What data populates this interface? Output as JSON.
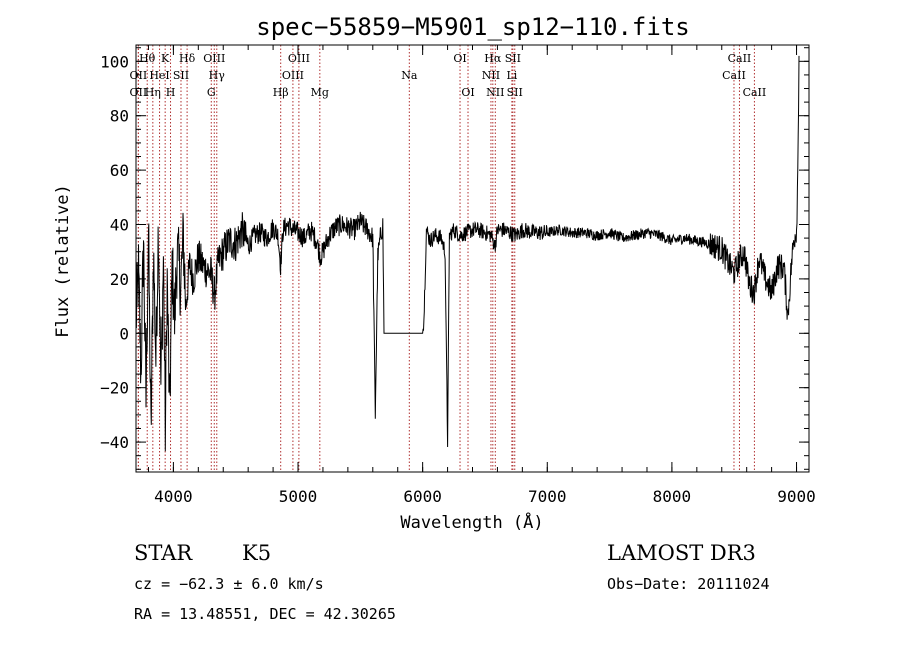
{
  "chart_data": {
    "type": "line",
    "title": "spec−55859−M5901_sp12−110.fits",
    "xlabel": "Wavelength (Å)",
    "ylabel": "Flux (relative)",
    "xlim": [
      3700,
      9100
    ],
    "ylim": [
      -51,
      106
    ],
    "grid": false,
    "x_ticks": [
      {
        "value": 4000,
        "label": "4000"
      },
      {
        "value": 5000,
        "label": "5000"
      },
      {
        "value": 6000,
        "label": "6000"
      },
      {
        "value": 7000,
        "label": "7000"
      },
      {
        "value": 8000,
        "label": "8000"
      },
      {
        "value": 9000,
        "label": "9000"
      }
    ],
    "y_ticks": [
      {
        "value": -40,
        "label": "−40"
      },
      {
        "value": -20,
        "label": "−20"
      },
      {
        "value": 0,
        "label": "0"
      },
      {
        "value": 20,
        "label": "20"
      },
      {
        "value": 40,
        "label": "40"
      },
      {
        "value": 60,
        "label": "60"
      },
      {
        "value": 80,
        "label": "80"
      },
      {
        "value": 100,
        "label": "100"
      }
    ],
    "x_minor_step": 200,
    "y_minor_step": 5,
    "line_marker_color": "#b03030",
    "spectral_lines": [
      {
        "label": "OII",
        "wavelength": 3727,
        "row": 2,
        "offset": -1
      },
      {
        "label": "Hθ",
        "wavelength": 3798,
        "row": 1,
        "offset": -1
      },
      {
        "label": "OII",
        "wavelength": 3727,
        "row": 3,
        "offset": -1
      },
      {
        "label": "Hη",
        "wavelength": 3835,
        "row": 3,
        "offset": 0
      },
      {
        "label": "HeI",
        "wavelength": 3889,
        "row": 2,
        "offset": 0
      },
      {
        "label": "K",
        "wavelength": 3934,
        "row": 1,
        "offset": 0
      },
      {
        "label": "H",
        "wavelength": 3969,
        "row": 3,
        "offset": 1
      },
      {
        "label": "SII",
        "wavelength": 4069,
        "row": 2,
        "offset": -1
      },
      {
        "label": "Hδ",
        "wavelength": 4102,
        "row": 1,
        "offset": 1
      },
      {
        "label": "OIII",
        "wavelength": 4320,
        "row": 1,
        "offset": 1
      },
      {
        "label": "Hγ",
        "wavelength": 4340,
        "row": 2,
        "offset": 1
      },
      {
        "label": "G",
        "wavelength": 4304,
        "row": 3,
        "offset": 0
      },
      {
        "label": "Hβ",
        "wavelength": 4861,
        "row": 3,
        "offset": 0
      },
      {
        "label": "OIII",
        "wavelength": 4959,
        "row": 2,
        "offset": 0
      },
      {
        "label": "OIII",
        "wavelength": 5007,
        "row": 1,
        "offset": 0
      },
      {
        "label": "Mg",
        "wavelength": 5175,
        "row": 3,
        "offset": 0
      },
      {
        "label": "Na",
        "wavelength": 5893,
        "row": 2,
        "offset": 0
      },
      {
        "label": "OI",
        "wavelength": 6300,
        "row": 1,
        "offset": 0
      },
      {
        "label": "OI",
        "wavelength": 6364,
        "row": 3,
        "offset": 0
      },
      {
        "label": "NII",
        "wavelength": 6548,
        "row": 2,
        "offset": 0
      },
      {
        "label": "Hα",
        "wavelength": 6563,
        "row": 1,
        "offset": 0
      },
      {
        "label": "NII",
        "wavelength": 6583,
        "row": 3,
        "offset": 0
      },
      {
        "label": "SII",
        "wavelength": 6716,
        "row": 1,
        "offset": 1
      },
      {
        "label": "Li",
        "wavelength": 6708,
        "row": 2,
        "offset": 1
      },
      {
        "label": "SII",
        "wavelength": 6731,
        "row": 3,
        "offset": 1
      },
      {
        "label": "CaII",
        "wavelength": 8498,
        "row": 2,
        "offset": 0
      },
      {
        "label": "CaII",
        "wavelength": 8542,
        "row": 1,
        "offset": 0
      },
      {
        "label": "CaII",
        "wavelength": 8662,
        "row": 3,
        "offset": 0
      }
    ],
    "series": [
      {
        "name": "flux",
        "anchors": [
          [
            3700,
            5
          ],
          [
            3720,
            22
          ],
          [
            3740,
            -15
          ],
          [
            3760,
            35
          ],
          [
            3780,
            -25
          ],
          [
            3800,
            38
          ],
          [
            3820,
            -38
          ],
          [
            3840,
            30
          ],
          [
            3860,
            -10
          ],
          [
            3880,
            42
          ],
          [
            3900,
            -20
          ],
          [
            3920,
            28
          ],
          [
            3935,
            -35
          ],
          [
            3950,
            20
          ],
          [
            3970,
            -30
          ],
          [
            3990,
            25
          ],
          [
            4010,
            5
          ],
          [
            4030,
            30
          ],
          [
            4060,
            18
          ],
          [
            4080,
            35
          ],
          [
            4100,
            10
          ],
          [
            4130,
            25
          ],
          [
            4160,
            20
          ],
          [
            4200,
            28
          ],
          [
            4250,
            24
          ],
          [
            4300,
            22
          ],
          [
            4330,
            14
          ],
          [
            4360,
            26
          ],
          [
            4400,
            30
          ],
          [
            4450,
            34
          ],
          [
            4500,
            33
          ],
          [
            4550,
            38
          ],
          [
            4600,
            32
          ],
          [
            4650,
            36
          ],
          [
            4700,
            37
          ],
          [
            4750,
            35
          ],
          [
            4800,
            39
          ],
          [
            4840,
            36
          ],
          [
            4860,
            25
          ],
          [
            4880,
            38
          ],
          [
            4920,
            40
          ],
          [
            4960,
            38
          ],
          [
            5000,
            37
          ],
          [
            5050,
            35
          ],
          [
            5100,
            38
          ],
          [
            5150,
            34
          ],
          [
            5180,
            28
          ],
          [
            5200,
            30
          ],
          [
            5250,
            36
          ],
          [
            5300,
            39
          ],
          [
            5350,
            40
          ],
          [
            5400,
            39
          ],
          [
            5450,
            38
          ],
          [
            5500,
            41
          ],
          [
            5560,
            38
          ],
          [
            5600,
            35
          ],
          [
            5620,
            -30
          ],
          [
            5640,
            28
          ],
          [
            5660,
            35
          ],
          [
            5680,
            40
          ],
          [
            5690,
            0
          ],
          [
            5700,
            0
          ],
          [
            5800,
            0
          ],
          [
            5900,
            0
          ],
          [
            6000,
            0
          ],
          [
            6010,
            5
          ],
          [
            6030,
            38
          ],
          [
            6060,
            34
          ],
          [
            6100,
            36
          ],
          [
            6150,
            35
          ],
          [
            6180,
            30
          ],
          [
            6200,
            -40
          ],
          [
            6215,
            36
          ],
          [
            6250,
            38
          ],
          [
            6300,
            36
          ],
          [
            6350,
            37
          ],
          [
            6400,
            38
          ],
          [
            6450,
            38
          ],
          [
            6500,
            37
          ],
          [
            6550,
            36
          ],
          [
            6580,
            32
          ],
          [
            6600,
            38
          ],
          [
            6650,
            38
          ],
          [
            6700,
            37
          ],
          [
            6750,
            36
          ],
          [
            6800,
            38
          ],
          [
            6900,
            37
          ],
          [
            7000,
            37
          ],
          [
            7100,
            38
          ],
          [
            7200,
            37
          ],
          [
            7300,
            37
          ],
          [
            7400,
            36
          ],
          [
            7500,
            37
          ],
          [
            7600,
            35
          ],
          [
            7700,
            36
          ],
          [
            7800,
            37
          ],
          [
            7900,
            36
          ],
          [
            8000,
            34
          ],
          [
            8100,
            35
          ],
          [
            8200,
            34
          ],
          [
            8300,
            33
          ],
          [
            8400,
            31
          ],
          [
            8450,
            26
          ],
          [
            8500,
            22
          ],
          [
            8540,
            27
          ],
          [
            8580,
            30
          ],
          [
            8620,
            18
          ],
          [
            8660,
            15
          ],
          [
            8700,
            28
          ],
          [
            8750,
            20
          ],
          [
            8800,
            15
          ],
          [
            8850,
            25
          ],
          [
            8900,
            24
          ],
          [
            8930,
            6
          ],
          [
            8960,
            26
          ],
          [
            8980,
            35
          ],
          [
            9000,
            38
          ],
          [
            9010,
            60
          ],
          [
            9020,
            102
          ]
        ]
      }
    ]
  },
  "info": {
    "object_type": "STAR",
    "subclass": "K5",
    "survey": "LAMOST DR3",
    "cz": "cz = −62.3 ± 6.0 km/s",
    "obs_date": "Obs−Date: 20111024",
    "coords": "RA =  13.48551, DEC =  42.30265"
  }
}
